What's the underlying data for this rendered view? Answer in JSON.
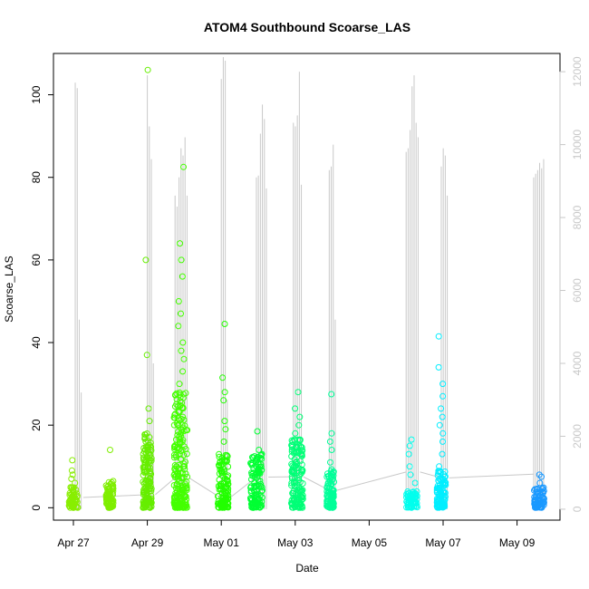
{
  "chart_data": {
    "type": "scatter",
    "title": "ATOM4 Southbound Scoarse_LAS",
    "xlabel": "Date",
    "ylabel": "Scoarse_LAS",
    "x_range_days_label": [
      "Apr 26 21:00",
      "May 10 03:00"
    ],
    "x_tick_labels": [
      "Apr 27",
      "Apr 29",
      "May 01",
      "May 03",
      "May 05",
      "May 07",
      "May 09"
    ],
    "x_tick_dates": [
      "2016-04-27",
      "2016-04-29",
      "2016-05-01",
      "2016-05-03",
      "2016-05-05",
      "2016-05-07",
      "2016-05-09"
    ],
    "ylim": [
      -3,
      110
    ],
    "y_ticks": [
      0,
      20,
      40,
      60,
      80,
      100
    ],
    "y2lim": [
      -300,
      12500
    ],
    "y2_ticks": [
      0,
      2000,
      4000,
      6000,
      8000,
      10000,
      12000
    ],
    "y2_color": "#c8c8c8",
    "point_color_scale": [
      "#7fff00",
      "#00ff66",
      "#00ffff",
      "#0080ff"
    ],
    "clusters": [
      {
        "date": "Apr 27",
        "day": 0.0,
        "width": 0.12,
        "baseline_max": 5,
        "outliers": [
          6,
          7,
          8,
          9,
          11.5
        ],
        "color": "#88ee00"
      },
      {
        "date": "Apr 28",
        "day": 0.98,
        "width": 0.1,
        "baseline_max": 6.5,
        "outliers": [
          14
        ],
        "color": "#7fee00"
      },
      {
        "date": "Apr 29",
        "day": 2.0,
        "width": 0.12,
        "baseline_max": 18,
        "outliers": [
          21,
          24,
          37,
          60,
          106
        ],
        "color": "#66ee00"
      },
      {
        "date": "Apr 30",
        "day": 2.9,
        "width": 0.18,
        "baseline_max": 28,
        "outliers": [
          30,
          33,
          36,
          38,
          40,
          44,
          47,
          50,
          56,
          60,
          64,
          82.5
        ],
        "color": "#44ff00"
      },
      {
        "date": "May 01",
        "day": 4.05,
        "width": 0.14,
        "baseline_max": 13,
        "outliers": [
          16,
          19,
          21,
          26,
          28,
          31.5,
          44.5
        ],
        "color": "#22ff00"
      },
      {
        "date": "May 01b",
        "day": 4.95,
        "width": 0.16,
        "baseline_max": 13,
        "outliers": [
          14,
          18.5
        ],
        "color": "#00ff33"
      },
      {
        "date": "May 03",
        "day": 6.05,
        "width": 0.16,
        "baseline_max": 17,
        "outliers": [
          18,
          20,
          22,
          24,
          28
        ],
        "color": "#00ff77"
      },
      {
        "date": "May 03b",
        "day": 6.95,
        "width": 0.1,
        "baseline_max": 9.5,
        "outliers": [
          11,
          14,
          16,
          18,
          27.5
        ],
        "color": "#00ff99"
      },
      {
        "date": "May 06",
        "day": 9.15,
        "width": 0.16,
        "baseline_max": 4,
        "outliers": [
          6,
          8,
          10,
          13,
          15,
          16.5
        ],
        "color": "#00ffee"
      },
      {
        "date": "May 07",
        "day": 9.95,
        "width": 0.12,
        "baseline_max": 9,
        "outliers": [
          10,
          13,
          16,
          18,
          20,
          22,
          24,
          27,
          30,
          34,
          41.5
        ],
        "color": "#00eeff"
      },
      {
        "date": "May 09",
        "day": 12.6,
        "width": 0.14,
        "baseline_max": 5,
        "outliers": [
          6,
          7.5,
          8
        ],
        "color": "#1a99ff"
      }
    ],
    "secondary_series": {
      "color": "#c8c8c8",
      "spikes": [
        {
          "day": 0.05,
          "values": [
            11700,
            11550,
            5200,
            3200
          ]
        },
        {
          "day": 2.0,
          "values": [
            11900,
            10500,
            9600,
            4000
          ]
        },
        {
          "day": 2.75,
          "values": [
            8600,
            8300,
            9100,
            9900,
            9700,
            10200,
            8600
          ]
        },
        {
          "day": 4.0,
          "values": [
            11800,
            12400,
            12300,
            3000
          ]
        },
        {
          "day": 4.95,
          "values": [
            9100,
            9150,
            10300,
            11100,
            10700,
            8800
          ]
        },
        {
          "day": 5.95,
          "values": [
            10600,
            10500,
            10800,
            12000,
            8900
          ]
        },
        {
          "day": 6.92,
          "values": [
            9300,
            9400,
            10000,
            5200
          ]
        },
        {
          "day": 9.0,
          "values": [
            9800,
            9900,
            10400,
            11600,
            11900,
            10600,
            10200
          ]
        },
        {
          "day": 9.95,
          "values": [
            9400,
            9900,
            9700,
            8600
          ]
        },
        {
          "day": 12.45,
          "values": [
            9100,
            9200,
            9300,
            9500,
            9350,
            9600
          ]
        }
      ]
    }
  }
}
